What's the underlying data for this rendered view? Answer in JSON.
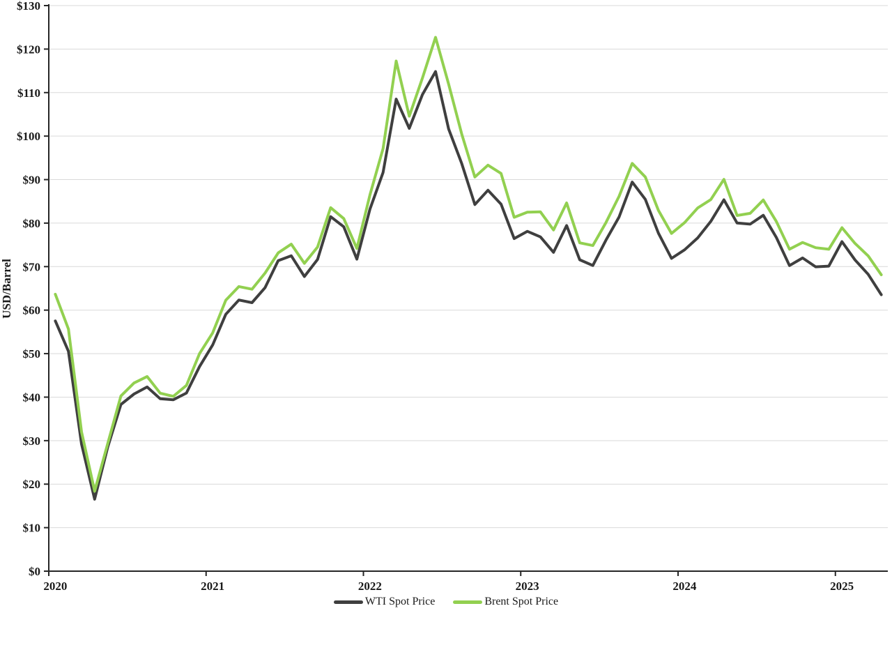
{
  "chart_data": {
    "type": "line",
    "title": "",
    "xlabel": "",
    "ylabel": "USD/Barrel",
    "ylim": [
      0,
      130
    ],
    "grid": "horizontal-major",
    "legend_position": "bottom-center",
    "colors": {
      "wti": "#3F3F3F",
      "brent": "#92D050",
      "gridline": "#D9D9D9",
      "axis": "#262626",
      "tick_text": "#1a1a1a",
      "background": "#FFFFFF"
    },
    "yticks": [
      {
        "value": 0,
        "label": "$0"
      },
      {
        "value": 10,
        "label": "$10"
      },
      {
        "value": 20,
        "label": "$20"
      },
      {
        "value": 30,
        "label": "$30"
      },
      {
        "value": 40,
        "label": "$40"
      },
      {
        "value": 50,
        "label": "$50"
      },
      {
        "value": 60,
        "label": "$60"
      },
      {
        "value": 70,
        "label": "$70"
      },
      {
        "value": 80,
        "label": "$80"
      },
      {
        "value": 90,
        "label": "$90"
      },
      {
        "value": 100,
        "label": "$100"
      },
      {
        "value": 110,
        "label": "$110"
      },
      {
        "value": 120,
        "label": "$120"
      },
      {
        "value": 130,
        "label": "$130"
      }
    ],
    "xticks": [
      {
        "month_index": 0,
        "label": "2020"
      },
      {
        "month_index": 12,
        "label": "2021"
      },
      {
        "month_index": 24,
        "label": "2022"
      },
      {
        "month_index": 36,
        "label": "2023"
      },
      {
        "month_index": 48,
        "label": "2024"
      },
      {
        "month_index": 60,
        "label": "2025"
      }
    ],
    "x": [
      "Jan 2020",
      "Feb 2020",
      "Mar 2020",
      "Apr 2020",
      "May 2020",
      "Jun 2020",
      "Jul 2020",
      "Aug 2020",
      "Sep 2020",
      "Oct 2020",
      "Nov 2020",
      "Dec 2020",
      "Jan 2021",
      "Feb 2021",
      "Mar 2021",
      "Apr 2021",
      "May 2021",
      "Jun 2021",
      "Jul 2021",
      "Aug 2021",
      "Sep 2021",
      "Oct 2021",
      "Nov 2021",
      "Dec 2021",
      "Jan 2022",
      "Feb 2022",
      "Mar 2022",
      "Apr 2022",
      "May 2022",
      "Jun 2022",
      "Jul 2022",
      "Aug 2022",
      "Sep 2022",
      "Oct 2022",
      "Nov 2022",
      "Dec 2022",
      "Jan 2023",
      "Feb 2023",
      "Mar 2023",
      "Apr 2023",
      "May 2023",
      "Jun 2023",
      "Jul 2023",
      "Aug 2023",
      "Sep 2023",
      "Oct 2023",
      "Nov 2023",
      "Dec 2023",
      "Jan 2024",
      "Feb 2024",
      "Mar 2024",
      "Apr 2024",
      "May 2024",
      "Jun 2024",
      "Jul 2024",
      "Aug 2024",
      "Sep 2024",
      "Oct 2024",
      "Nov 2024",
      "Dec 2024",
      "Jan 2025",
      "Feb 2025",
      "Mar 2025",
      "Apr 2025"
    ],
    "series": [
      {
        "name": "WTI Spot Price",
        "color": "#3F3F3F",
        "values": [
          57.52,
          50.54,
          29.21,
          16.55,
          28.56,
          38.31,
          40.71,
          42.34,
          39.63,
          39.4,
          40.94,
          47.02,
          52.0,
          59.04,
          62.33,
          61.72,
          65.17,
          71.38,
          72.49,
          67.73,
          71.65,
          81.48,
          79.15,
          71.71,
          83.22,
          91.64,
          108.5,
          101.78,
          109.55,
          114.84,
          101.62,
          93.67,
          84.26,
          87.55,
          84.37,
          76.44,
          78.12,
          76.83,
          73.28,
          79.45,
          71.58,
          70.25,
          76.07,
          81.39,
          89.43,
          85.47,
          77.69,
          71.9,
          73.86,
          76.61,
          80.41,
          85.35,
          80.02,
          79.77,
          81.8,
          76.68,
          70.24,
          71.99,
          69.95,
          70.12,
          75.74,
          71.53,
          68.24,
          63.54
        ]
      },
      {
        "name": "Brent Spot Price",
        "color": "#92D050",
        "values": [
          63.65,
          55.66,
          32.01,
          18.38,
          29.38,
          40.27,
          43.24,
          44.74,
          40.91,
          40.19,
          42.69,
          49.99,
          54.77,
          62.28,
          65.41,
          64.81,
          68.53,
          73.16,
          75.17,
          70.75,
          74.49,
          83.54,
          81.05,
          74.17,
          86.51,
          97.13,
          117.25,
          104.58,
          113.34,
          122.71,
          111.93,
          100.45,
          90.6,
          93.33,
          91.42,
          81.33,
          82.5,
          82.59,
          78.43,
          84.64,
          75.47,
          74.84,
          80.11,
          86.15,
          93.72,
          90.6,
          82.94,
          77.63,
          80.12,
          83.48,
          85.41,
          90.05,
          81.75,
          82.25,
          85.31,
          80.36,
          74.01,
          75.55,
          74.34,
          74.0,
          78.94,
          75.32,
          72.47,
          68.13
        ]
      }
    ]
  }
}
